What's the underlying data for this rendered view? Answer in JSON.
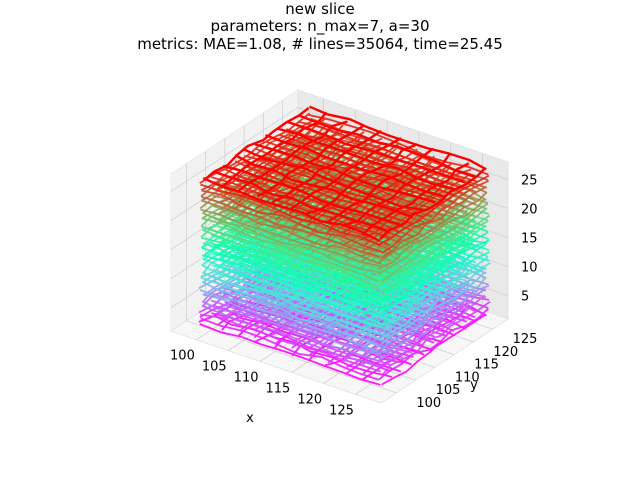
{
  "chart_data": {
    "type": "line3d",
    "title_lines": [
      "new slice",
      "parameters: n_max=7, a=30",
      "metrics: MAE=1.08, # lines=35064, time=25.45"
    ],
    "xlabel": "x",
    "ylabel": "y",
    "zlabel": "",
    "x_ticks": [
      100,
      105,
      110,
      115,
      120,
      125
    ],
    "y_ticks": [
      100,
      105,
      110,
      115,
      120,
      125
    ],
    "z_ticks": [
      5,
      10,
      15,
      20,
      25
    ],
    "xlim": [
      96,
      129
    ],
    "ylim": [
      96,
      129
    ],
    "zlim": [
      1,
      28
    ],
    "colormap": "rainbow",
    "layers": {
      "z_start": 2,
      "z_end": 27,
      "count": 26,
      "grid_lines_per_side": 11
    },
    "pane_color": "#f2f2f2",
    "grid": true
  }
}
